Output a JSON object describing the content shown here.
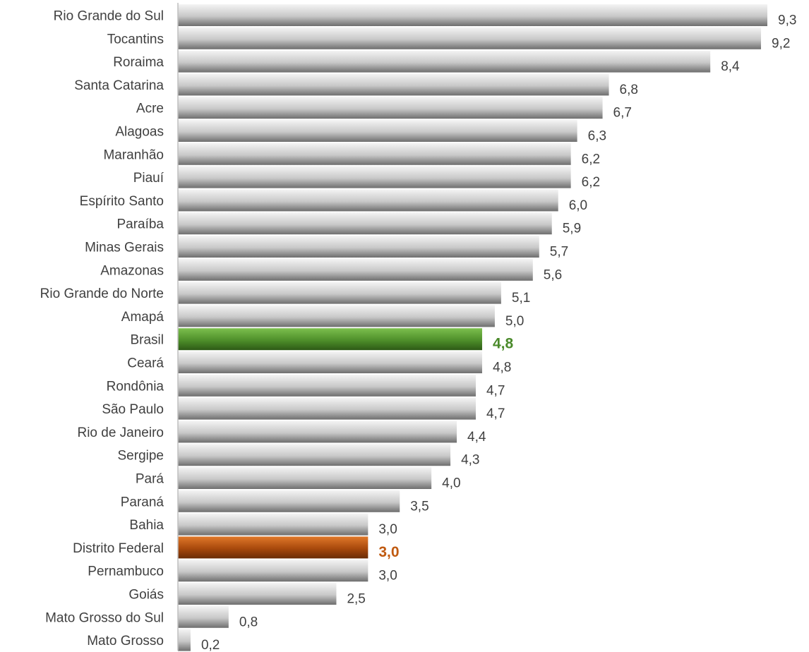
{
  "chart_data": {
    "type": "bar",
    "orientation": "horizontal",
    "categories": [
      "Rio Grande do Sul",
      "Tocantins",
      "Roraima",
      "Santa Catarina",
      "Acre",
      "Alagoas",
      "Maranhão",
      "Piauí",
      "Espírito Santo",
      "Paraíba",
      "Minas Gerais",
      "Amazonas",
      "Rio Grande do Norte",
      "Amapá",
      "Brasil",
      "Ceará",
      "Rondônia",
      "São Paulo",
      "Rio de Janeiro",
      "Sergipe",
      "Pará",
      "Paraná",
      "Bahia",
      "Distrito Federal",
      "Pernambuco",
      "Goiás",
      "Mato Grosso do Sul",
      "Mato Grosso"
    ],
    "values": [
      9.3,
      9.2,
      8.4,
      6.8,
      6.7,
      6.3,
      6.2,
      6.2,
      6.0,
      5.9,
      5.7,
      5.6,
      5.1,
      5.0,
      4.8,
      4.8,
      4.7,
      4.7,
      4.4,
      4.3,
      4.0,
      3.5,
      3.0,
      3.0,
      3.0,
      2.5,
      0.8,
      0.2
    ],
    "value_labels": [
      "9,3",
      "9,2",
      "8,4",
      "6,8",
      "6,7",
      "6,3",
      "6,2",
      "6,2",
      "6,0",
      "5,9",
      "5,7",
      "5,6",
      "5,1",
      "5,0",
      "4,8",
      "4,8",
      "4,7",
      "4,7",
      "4,4",
      "4,3",
      "4,0",
      "3,5",
      "3,0",
      "3,0",
      "3,0",
      "2,5",
      "0,8",
      "0,2"
    ],
    "highlights": {
      "Brasil": "#4a8a2a",
      "Distrito Federal": "#c05a10"
    },
    "colors": {
      "bar_default": "#a6a6a6",
      "brasil_bar": "#5a9a35",
      "brasil_label": "#4a8a2a",
      "df_bar": "#b8500c",
      "df_label": "#c05a10"
    },
    "xlim": [
      0,
      9.3
    ],
    "grid": false,
    "legend": "none"
  }
}
